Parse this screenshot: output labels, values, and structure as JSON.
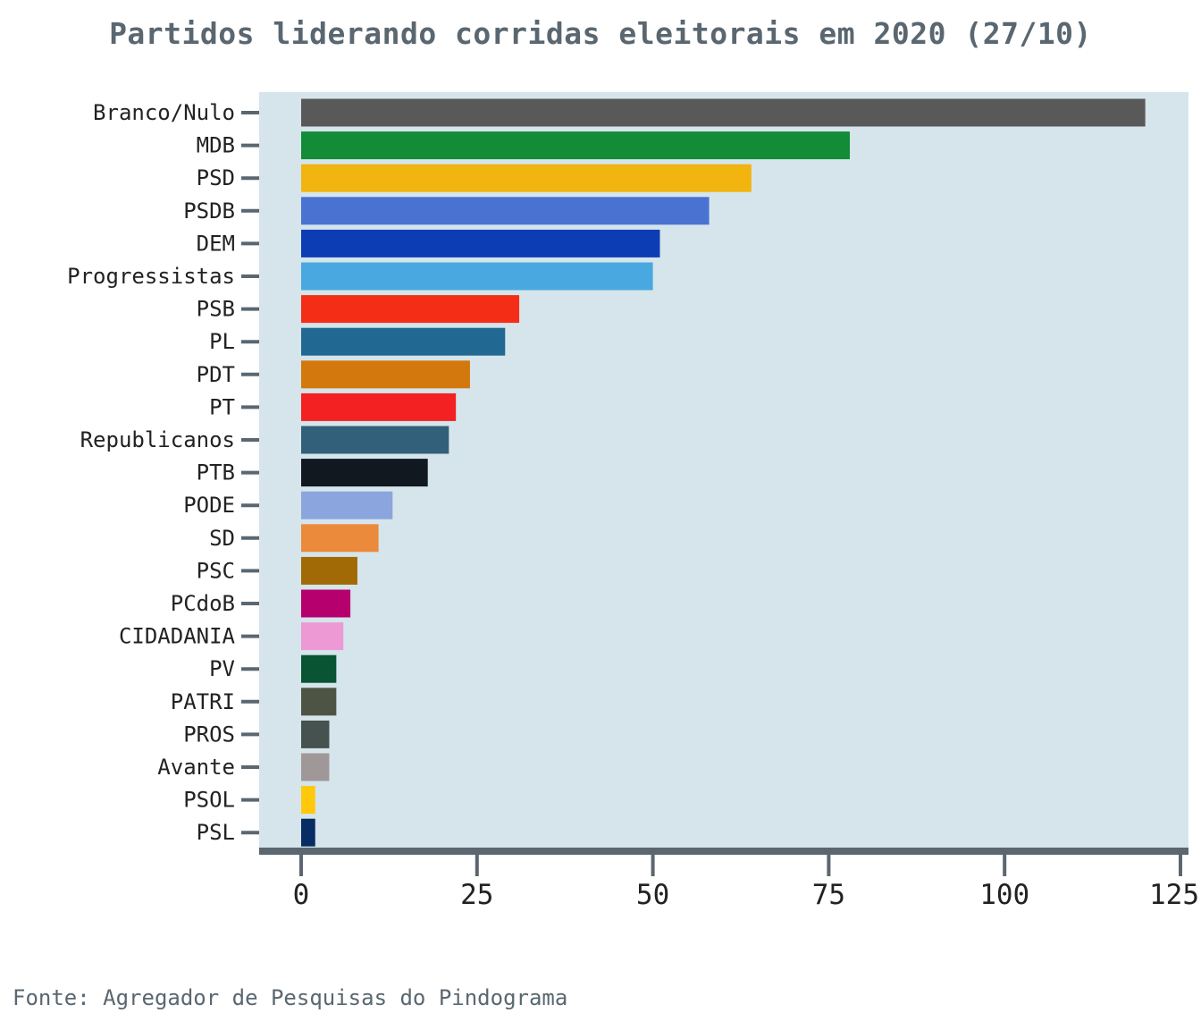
{
  "title": "Partidos liderando corridas eleitorais em 2020 (27/10)",
  "source": "Fonte: Agregador de Pesquisas do Pindograma",
  "chart_data": {
    "type": "bar",
    "orientation": "horizontal",
    "title": "Partidos liderando corridas eleitorais em 2020 (27/10)",
    "xlabel": "",
    "ylabel": "",
    "xlim": [
      -6,
      125
    ],
    "xticks": [
      "0",
      "25",
      "50",
      "75",
      "100",
      "125"
    ],
    "grid": false,
    "background": "#d5e5eb",
    "categories": [
      "Branco/Nulo",
      "MDB",
      "PSD",
      "PSDB",
      "DEM",
      "Progressistas",
      "PSB",
      "PL",
      "PDT",
      "PT",
      "Republicanos",
      "PTB",
      "PODE",
      "SD",
      "PSC",
      "PCdoB",
      "CIDADANIA",
      "PV",
      "PATRI",
      "PROS",
      "Avante",
      "PSOL",
      "PSL"
    ],
    "values": [
      120,
      78,
      64,
      58,
      51,
      50,
      31,
      29,
      24,
      22,
      21,
      18,
      13,
      11,
      8,
      7,
      6,
      5,
      5,
      4,
      4,
      2,
      2
    ],
    "colors": [
      "#595959",
      "#138c38",
      "#f2b40f",
      "#4a72d1",
      "#0c3db5",
      "#49a8e0",
      "#f42d16",
      "#216892",
      "#d2780c",
      "#f32121",
      "#32607a",
      "#111820",
      "#8ba6de",
      "#ec8a3b",
      "#a26a06",
      "#b5006e",
      "#ed99d4",
      "#095433",
      "#4e5444",
      "#45524f",
      "#a09898",
      "#ffc80a",
      "#082d64"
    ]
  }
}
